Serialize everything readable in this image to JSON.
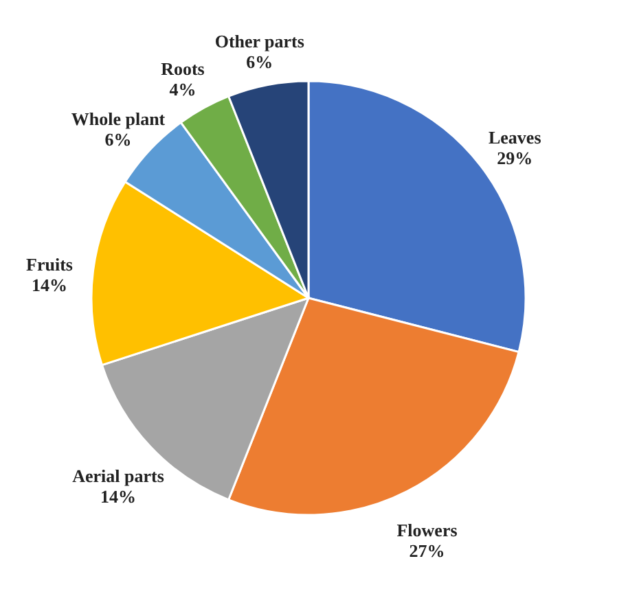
{
  "chart_data": {
    "type": "pie",
    "categories": [
      "Leaves",
      "Flowers",
      "Aerial parts",
      "Fruits",
      "Whole plant",
      "Roots",
      "Other parts"
    ],
    "values": [
      29,
      27,
      14,
      14,
      6,
      4,
      6
    ],
    "colors": [
      "#4472c4",
      "#ed7d31",
      "#a5a5a5",
      "#ffc000",
      "#5b9bd5",
      "#70ad47",
      "#264478"
    ],
    "value_labels": [
      "29%",
      "27%",
      "14%",
      "14%",
      "6%",
      "4%",
      "6%"
    ]
  }
}
